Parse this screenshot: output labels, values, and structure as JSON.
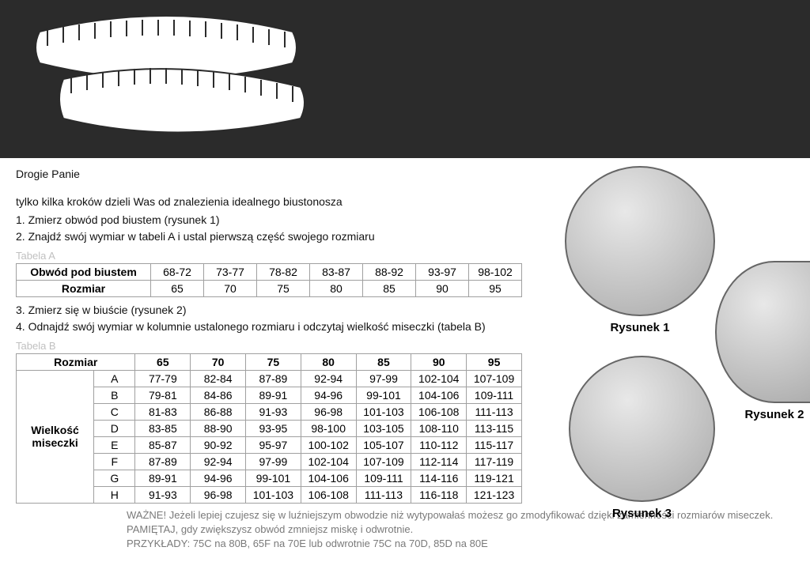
{
  "colors": {
    "header_bg": "#2b2b2b",
    "body_bg": "#ffffff",
    "text": "#111111",
    "muted": "#c0c0c0",
    "notes": "#7a7a7a",
    "border": "#a0a0a0"
  },
  "greeting": "Drogie Panie",
  "intro_lead": "tylko kilka kroków dzieli Was od znalezienia idealnego biustonosza",
  "steps12": [
    "1. Zmierz obwód pod biustem (rysunek 1)",
    "2. Znajdź swój wymiar w tabeli A i ustal pierwszą część swojego rozmiaru"
  ],
  "tableA": {
    "label": "Tabela A",
    "row1_label": "Obwód pod biustem",
    "row2_label": "Rozmiar",
    "underbust": [
      "68-72",
      "73-77",
      "78-82",
      "83-87",
      "88-92",
      "93-97",
      "98-102"
    ],
    "size": [
      "65",
      "70",
      "75",
      "80",
      "85",
      "90",
      "95"
    ]
  },
  "steps34": [
    "3. Zmierz się w biuście (rysunek 2)",
    "4. Odnajdź swój wymiar w kolumnie ustalonego rozmiaru i odczytaj wielkość miseczki (tabela B)"
  ],
  "tableB": {
    "label": "Tabela B",
    "header_rozmiar": "Rozmiar",
    "sizes": [
      "65",
      "70",
      "75",
      "80",
      "85",
      "90",
      "95"
    ],
    "row_span_label": "Wielkość miseczki",
    "cups": [
      "A",
      "B",
      "C",
      "D",
      "E",
      "F",
      "G",
      "H"
    ],
    "rows": [
      [
        "77-79",
        "82-84",
        "87-89",
        "92-94",
        "97-99",
        "102-104",
        "107-109"
      ],
      [
        "79-81",
        "84-86",
        "89-91",
        "94-96",
        "99-101",
        "104-106",
        "109-111"
      ],
      [
        "81-83",
        "86-88",
        "91-93",
        "96-98",
        "101-103",
        "106-108",
        "111-113"
      ],
      [
        "83-85",
        "88-90",
        "93-95",
        "98-100",
        "103-105",
        "108-110",
        "113-115"
      ],
      [
        "85-87",
        "90-92",
        "95-97",
        "100-102",
        "105-107",
        "110-112",
        "115-117"
      ],
      [
        "87-89",
        "92-94",
        "97-99",
        "102-104",
        "107-109",
        "112-114",
        "117-119"
      ],
      [
        "89-91",
        "94-96",
        "99-101",
        "104-106",
        "109-111",
        "114-116",
        "119-121"
      ],
      [
        "91-93",
        "96-98",
        "101-103",
        "106-108",
        "111-113",
        "116-118",
        "121-123"
      ]
    ]
  },
  "notes": {
    "line1_lead": "WAŻNE!",
    "line1_rest": " Jeżeli lepiej czujesz się w luźniejszym obwodzie niż wytypowałaś możesz go zmodyfikować dzięki zamienności rozmiarów miseczek.",
    "line2_lead": "PAMIĘTAJ,",
    "line2_rest": " gdy zwiększysz obwód zmniejsz miskę i odwrotnie.",
    "line3_lead": "PRZYKŁADY:",
    "line3_rest": " 75C na 80B,  65F na 70E lub odwrotnie 75C na 70D, 85D na 80E"
  },
  "figures": {
    "f1": "Rysunek 1",
    "f2": "Rysunek 2",
    "f3": "Rysunek 3"
  }
}
